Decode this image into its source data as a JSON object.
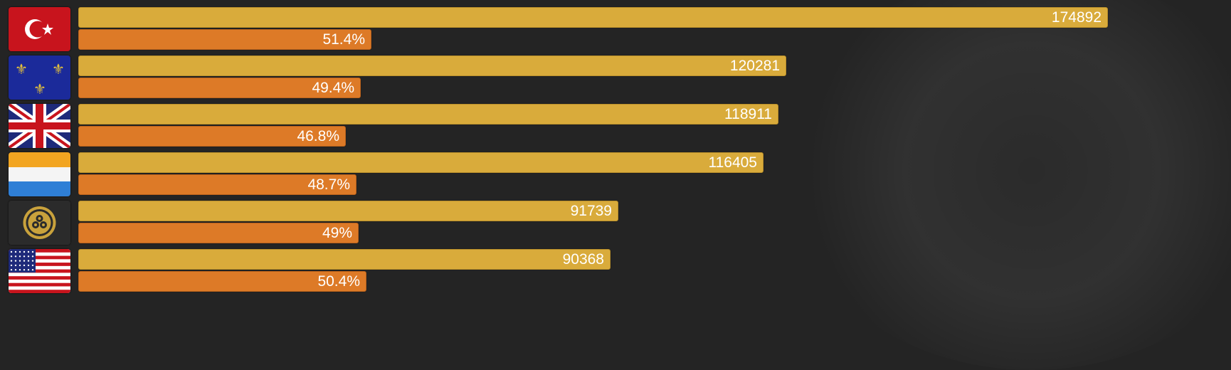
{
  "colors": {
    "background": "#242424",
    "bar_top": "#d9ab3b",
    "bar_bottom": "#dd7a27",
    "label_text": "#ffffff"
  },
  "chart_data": {
    "type": "bar",
    "orientation": "horizontal",
    "title": "",
    "xlabel": "",
    "ylabel": "",
    "grid": false,
    "legend": "none",
    "categories": [
      "ottoman-flag",
      "france-flag",
      "britain-flag",
      "netherlands-flag",
      "japan-flag",
      "usa-flag"
    ],
    "series": [
      {
        "values": [
          174892,
          120281,
          118911,
          116405,
          91739,
          90368
        ],
        "labels": [
          "174892",
          "120281",
          "118911",
          "116405",
          "91739",
          "90368"
        ]
      },
      {
        "values": [
          51.4,
          49.4,
          46.8,
          48.7,
          49,
          50.4
        ],
        "labels": [
          "51.4%",
          "49.4%",
          "46.8%",
          "48.7%",
          "49%",
          "50.4%"
        ]
      }
    ]
  },
  "rows": [
    {
      "flag_icon": "ottoman-flag-icon",
      "value_label": "174892",
      "percent_label": "51.4%"
    },
    {
      "flag_icon": "france-flag-icon",
      "value_label": "120281",
      "percent_label": "49.4%"
    },
    {
      "flag_icon": "britain-flag-icon",
      "value_label": "118911",
      "percent_label": "46.8%"
    },
    {
      "flag_icon": "netherlands-flag-icon",
      "value_label": "116405",
      "percent_label": "48.7%"
    },
    {
      "flag_icon": "japan-flag-icon",
      "value_label": "91739",
      "percent_label": "49%"
    },
    {
      "flag_icon": "usa-flag-icon",
      "value_label": "90368",
      "percent_label": "50.4%"
    }
  ]
}
